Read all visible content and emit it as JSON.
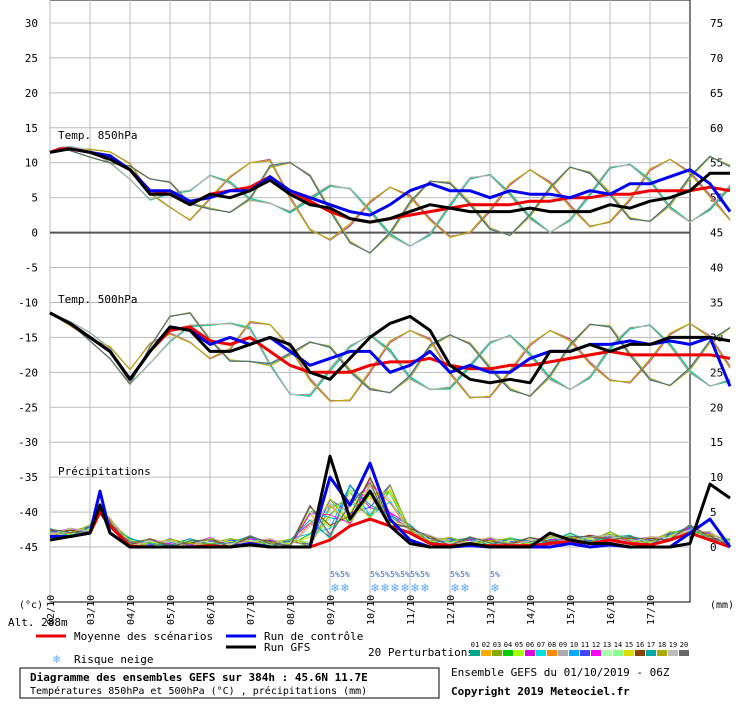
{
  "colors": {
    "mean": "#ee0000",
    "control": "#0000ee",
    "gfs": "#000000",
    "grid": "#bbbbbb",
    "snow": "#66aaff"
  },
  "labels": {
    "temp850": "Temp. 850hPa",
    "temp500": "Temp. 500hPa",
    "precip": "Précipitations",
    "unit_c": "(°c)",
    "unit_mm": "(mm)",
    "altitude": "Alt. 288m",
    "legend_mean": "Moyenne des scénarios",
    "legend_control": "Run de contrôle",
    "legend_gfs": "Run GFS",
    "legend_snow": "Risque neige",
    "legend_pert": "20 Perturbations",
    "snow_pct": "5%",
    "footer_title": "Diagramme des ensembles GEFS sur 384h : 45.6N 11.7E",
    "footer_sub": "Températures 850hPa et 500hPa (°C) , précipitations (mm)",
    "ensemble_info": "Ensemble GEFS du 01/10/2019 - 06Z",
    "copyright": "Copyright 2019 Meteociel.fr"
  },
  "pert_numbers": [
    "01",
    "02",
    "03",
    "04",
    "05",
    "06",
    "07",
    "08",
    "09",
    "10",
    "11",
    "12",
    "13",
    "14",
    "15",
    "16",
    "17",
    "18",
    "19",
    "20"
  ],
  "pert_colors": [
    "#00aa88",
    "#ffaa00",
    "#88aa00",
    "#00cc00",
    "#aaff00",
    "#dd00dd",
    "#00dddd",
    "#ff8800",
    "#aaaaaa",
    "#00aaff",
    "#4444ff",
    "#ff00ff",
    "#aaffaa",
    "#88ff88",
    "#dddd00",
    "#884400",
    "#00aaaa",
    "#aaaa00",
    "#bbbbbb",
    "#666666"
  ],
  "chart_data": {
    "type": "line",
    "x_ticks": [
      "02/10",
      "03/10",
      "04/10",
      "05/10",
      "06/10",
      "07/10",
      "08/10",
      "09/10",
      "10/10",
      "11/10",
      "12/10",
      "13/10",
      "14/10",
      "15/10",
      "16/10",
      "17/10"
    ],
    "y_left_ticks": [
      "30",
      "25",
      "20",
      "15",
      "10",
      "5",
      "0",
      "-5",
      "-10",
      "-15",
      "-20",
      "-25",
      "-30",
      "-35",
      "-40",
      "-45"
    ],
    "y_right_ticks": [
      "75",
      "70",
      "65",
      "60",
      "55",
      "50",
      "45",
      "40",
      "35",
      "30",
      "25",
      "20",
      "15",
      "10",
      "5",
      "0"
    ],
    "ylim_left": [
      -45,
      30
    ],
    "ylim_right": [
      0,
      75
    ],
    "x_range_hours": [
      0,
      384
    ],
    "snow_risk_days": [
      7.0,
      7.25,
      8.0,
      8.25,
      8.5,
      8.75,
      9.0,
      9.25,
      10.0,
      10.25,
      11.0
    ],
    "series": [
      {
        "name": "Moyenne des scénarios",
        "panel": "temp850",
        "x": [
          0,
          0.25,
          0.5,
          1,
          1.5,
          2,
          2.5,
          3,
          3.5,
          4,
          4.5,
          5,
          5.5,
          6,
          6.5,
          7,
          7.5,
          8,
          8.5,
          9,
          9.5,
          10,
          10.5,
          11,
          11.5,
          12,
          12.5,
          13,
          13.5,
          14,
          14.5,
          15,
          15.5,
          16,
          16.5,
          17
        ],
        "y": [
          11.5,
          12,
          12,
          11.5,
          10.5,
          9,
          6,
          5.5,
          4,
          5.5,
          6,
          6.5,
          8,
          6,
          4.5,
          3,
          2,
          1.5,
          2,
          2.5,
          3,
          3.5,
          4,
          4,
          4,
          4.5,
          4.5,
          5,
          5,
          5.5,
          5.5,
          6,
          6,
          6,
          6.5,
          6
        ]
      },
      {
        "name": "Run de contrôle",
        "panel": "temp850",
        "x": [
          0,
          0.5,
          1,
          1.5,
          2,
          2.5,
          3,
          3.5,
          4,
          4.5,
          5,
          5.5,
          6,
          6.5,
          7,
          7.5,
          8,
          8.5,
          9,
          9.5,
          10,
          10.5,
          11,
          11.5,
          12,
          12.5,
          13,
          13.5,
          14,
          14.5,
          15,
          15.5,
          16,
          16.5,
          17
        ],
        "y": [
          11.5,
          12,
          11.5,
          11,
          9,
          6,
          6,
          4.5,
          5,
          6,
          6,
          8,
          6,
          5,
          4,
          3,
          2.5,
          4,
          6,
          7,
          6,
          6,
          5,
          6,
          5.5,
          5.5,
          5,
          6,
          5.5,
          7,
          7,
          8,
          9,
          7,
          3
        ]
      },
      {
        "name": "Run GFS",
        "panel": "temp850",
        "x": [
          0,
          0.5,
          1,
          1.5,
          2,
          2.5,
          3,
          3.5,
          4,
          4.5,
          5,
          5.5,
          6,
          6.5,
          7,
          7.5,
          8,
          8.5,
          9,
          9.5,
          10,
          10.5,
          11,
          11.5,
          12,
          12.5,
          13,
          13.5,
          14,
          14.5,
          15,
          15.5,
          16,
          16.5,
          17
        ],
        "y": [
          11.5,
          12,
          11.5,
          10.5,
          9,
          5.5,
          5.5,
          4,
          5.5,
          5,
          6,
          7.5,
          5.5,
          4,
          3.5,
          2,
          1.5,
          2,
          3,
          4,
          3.5,
          3,
          3,
          3,
          3.5,
          3,
          3,
          3,
          4,
          3.5,
          4.5,
          5,
          6,
          8.5,
          8.5
        ]
      },
      {
        "name": "Moyenne des scénarios",
        "panel": "temp500",
        "x": [
          0,
          0.5,
          1,
          1.5,
          2,
          2.5,
          3,
          3.5,
          4,
          4.5,
          5,
          5.5,
          6,
          6.5,
          7,
          7.5,
          8,
          8.5,
          9,
          9.5,
          10,
          10.5,
          11,
          11.5,
          12,
          12.5,
          13,
          13.5,
          14,
          14.5,
          15,
          15.5,
          16,
          16.5,
          17
        ],
        "y": [
          -11.5,
          -13,
          -15,
          -17,
          -21,
          -17,
          -14,
          -13.5,
          -15.5,
          -16,
          -15,
          -17,
          -19,
          -20,
          -20,
          -20,
          -19,
          -18.5,
          -18.5,
          -18,
          -19,
          -19.5,
          -19.5,
          -19,
          -19,
          -18.5,
          -18,
          -17.5,
          -17,
          -17.5,
          -17.5,
          -17.5,
          -17.5,
          -17.5,
          -18
        ]
      },
      {
        "name": "Run de contrôle",
        "panel": "temp500",
        "x": [
          0,
          0.5,
          1,
          1.5,
          2,
          2.5,
          3,
          3.5,
          4,
          4.5,
          5,
          5.5,
          6,
          6.5,
          7,
          7.5,
          8,
          8.5,
          9,
          9.5,
          10,
          10.5,
          11,
          11.5,
          12,
          12.5,
          13,
          13.5,
          14,
          14.5,
          15,
          15.5,
          16,
          16.5,
          17
        ],
        "y": [
          -11.5,
          -13,
          -15,
          -17,
          -21,
          -17,
          -13.5,
          -14,
          -16,
          -15,
          -16,
          -15,
          -17,
          -19,
          -18,
          -17,
          -17,
          -20,
          -19,
          -17,
          -20,
          -19,
          -20,
          -20,
          -18,
          -17,
          -17,
          -16,
          -16,
          -15.5,
          -16,
          -15.5,
          -16,
          -15,
          -22
        ]
      },
      {
        "name": "Run GFS",
        "panel": "temp500",
        "x": [
          0,
          0.5,
          1,
          1.5,
          2,
          2.5,
          3,
          3.5,
          4,
          4.5,
          5,
          5.5,
          6,
          6.5,
          7,
          7.5,
          8,
          8.5,
          9,
          9.5,
          10,
          10.5,
          11,
          11.5,
          12,
          12.5,
          13,
          13.5,
          14,
          14.5,
          15,
          15.5,
          16,
          16.5,
          17
        ],
        "y": [
          -11.5,
          -13,
          -15,
          -17,
          -21,
          -17,
          -13.5,
          -14,
          -17,
          -17,
          -16,
          -15,
          -16,
          -20,
          -21,
          -18,
          -15,
          -13,
          -12,
          -14,
          -19,
          -21,
          -21.5,
          -21,
          -21.5,
          -17,
          -17,
          -16,
          -17,
          -16,
          -16,
          -15,
          -15,
          -15,
          -15.5
        ]
      },
      {
        "name": "Moyenne des scénarios",
        "panel": "precip",
        "x": [
          0,
          0.5,
          1,
          1.25,
          1.5,
          2,
          2.5,
          3,
          3.5,
          4,
          4.5,
          5,
          5.5,
          6,
          6.5,
          7,
          7.5,
          8,
          8.5,
          9,
          9.5,
          10,
          10.5,
          11,
          11.5,
          12,
          12.5,
          13,
          13.5,
          14,
          14.5,
          15,
          15.5,
          16,
          16.5,
          17
        ],
        "y": [
          1.5,
          1.5,
          2,
          5,
          3,
          0.1,
          0,
          0,
          0,
          0.2,
          0,
          0.5,
          0,
          0,
          0,
          1,
          3,
          4,
          3,
          2,
          0.5,
          0.2,
          0.3,
          0.2,
          0.2,
          0.2,
          0.5,
          0.8,
          0.5,
          1,
          0.5,
          0.3,
          1,
          2,
          1,
          0
        ]
      },
      {
        "name": "Run de contrôle",
        "panel": "precip",
        "x": [
          0,
          0.5,
          1,
          1.25,
          1.5,
          2,
          2.5,
          3,
          3.5,
          4,
          4.5,
          5,
          5.5,
          6,
          6.5,
          7,
          7.5,
          8,
          8.5,
          9,
          9.5,
          10,
          10.5,
          11,
          11.5,
          12,
          12.5,
          13,
          13.5,
          14,
          14.5,
          15,
          15.5,
          16,
          16.5,
          17
        ],
        "y": [
          1.5,
          1.5,
          2,
          8,
          2,
          0,
          0,
          0,
          0,
          0,
          0,
          0.5,
          0,
          0,
          0,
          10,
          6,
          12,
          4,
          1,
          0,
          0,
          0.2,
          0,
          0,
          0,
          0,
          0.5,
          0,
          0.3,
          0,
          0,
          0,
          2,
          4,
          0
        ]
      },
      {
        "name": "Run GFS",
        "panel": "precip",
        "x": [
          0,
          0.5,
          1,
          1.25,
          1.5,
          2,
          2.5,
          3,
          3.5,
          4,
          4.5,
          5,
          5.5,
          6,
          6.5,
          7,
          7.5,
          8,
          8.5,
          9,
          9.5,
          10,
          10.5,
          11,
          11.5,
          12,
          12.5,
          13,
          13.5,
          14,
          14.5,
          15,
          15.5,
          16,
          16.5,
          17
        ],
        "y": [
          1,
          1.5,
          2,
          6,
          2,
          0,
          0,
          0,
          0,
          0,
          0,
          0.3,
          0,
          0,
          0,
          13,
          4,
          8,
          3,
          0.5,
          0,
          0,
          0.5,
          0,
          0,
          0,
          2,
          1,
          0.5,
          0.5,
          0,
          0,
          0,
          0.5,
          9,
          7
        ]
      }
    ]
  }
}
